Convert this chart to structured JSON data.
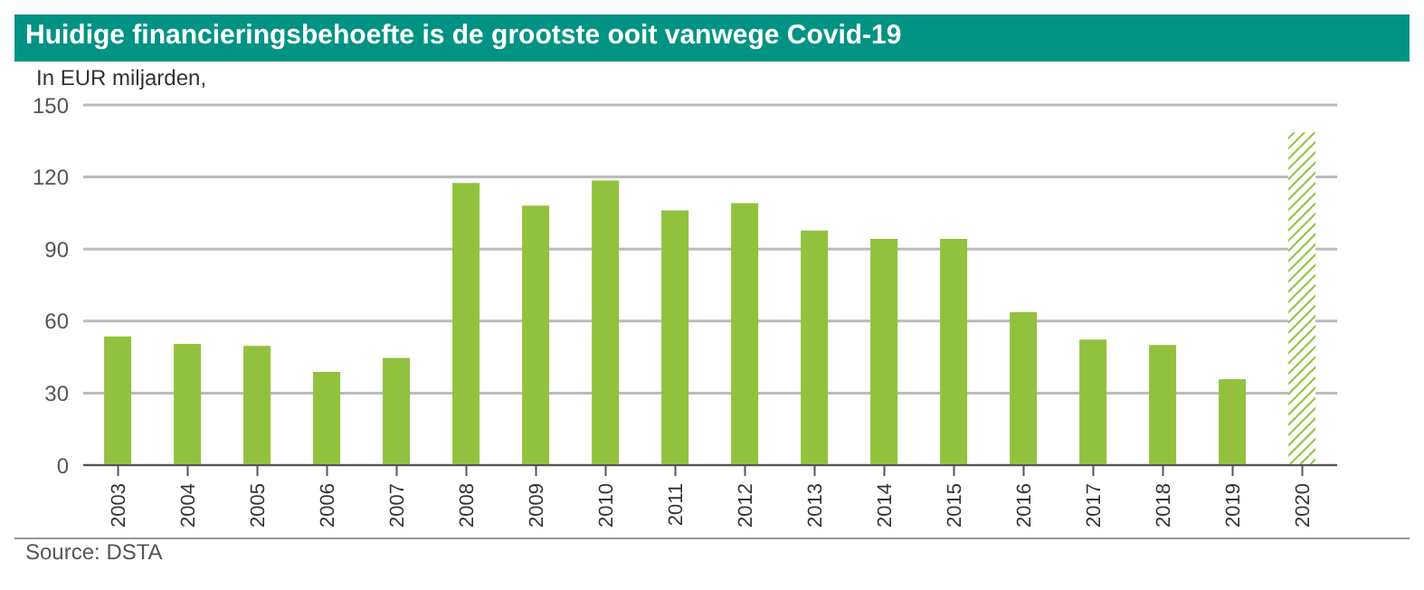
{
  "chart_data": {
    "type": "bar",
    "title": "Huidige financieringsbehoefte is de grootste ooit vanwege Covid-19",
    "ylabel": "In EUR miljarden,",
    "categories": [
      "2003",
      "2004",
      "2005",
      "2006",
      "2007",
      "2008",
      "2009",
      "2010",
      "2011",
      "2012",
      "2013",
      "2014",
      "2015",
      "2016",
      "2017",
      "2018",
      "2019",
      "2020"
    ],
    "series": [
      {
        "color": "#92c13e",
        "values": [
          53.6,
          50.5,
          49.7,
          38.8,
          44.7,
          117.5,
          108.1,
          118.5,
          106.1,
          109.1,
          97.7,
          94.2,
          94.2,
          63.7,
          52.3,
          50,
          35.8,
          null
        ]
      },
      {
        "color": "#92c13e",
        "values": [
          null,
          null,
          null,
          null,
          null,
          null,
          null,
          null,
          null,
          null,
          null,
          null,
          null,
          null,
          null,
          null,
          null,
          138.6
        ]
      }
    ],
    "stacked": true,
    "ylim": [
      0,
      150
    ],
    "yticks": [
      0,
      30,
      60,
      90,
      120,
      150
    ],
    "grid": "y",
    "annotations": [
      "Source: DSTA"
    ]
  }
}
